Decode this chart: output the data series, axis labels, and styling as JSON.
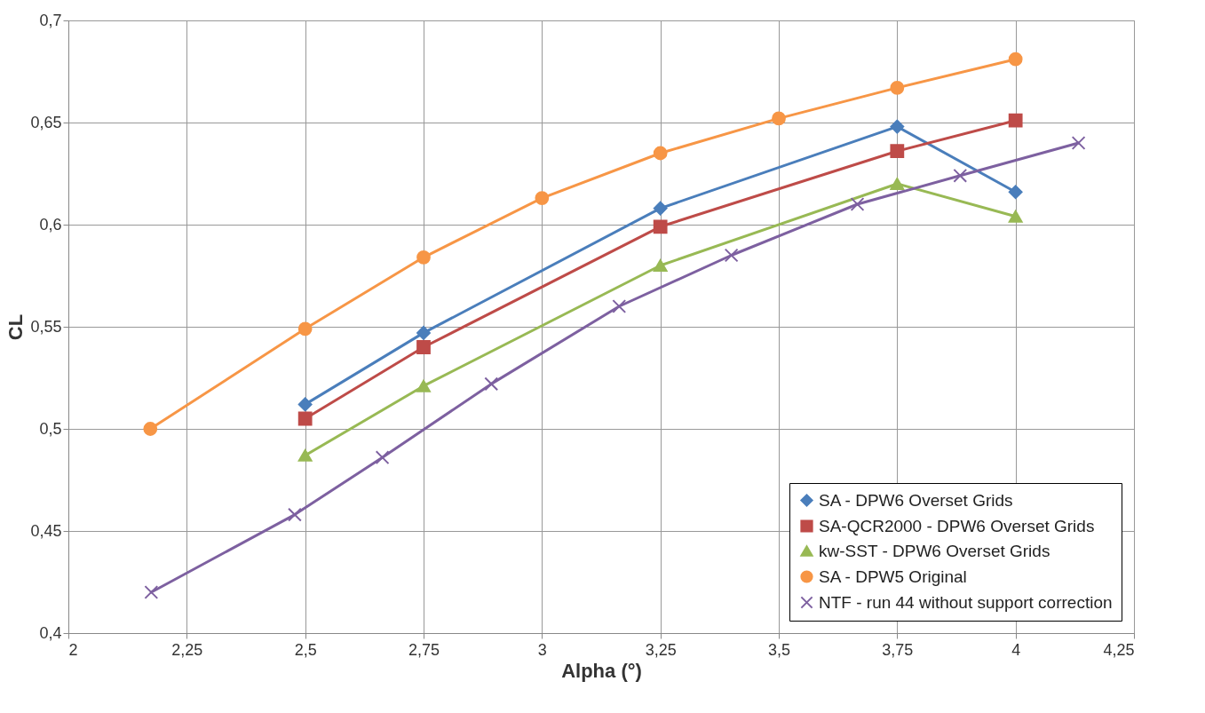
{
  "chart_data": {
    "type": "line",
    "xlabel": "Alpha (°)",
    "ylabel": "CL",
    "xlim": [
      2,
      4.25
    ],
    "xticks": [
      2,
      {
        "value": 2.25,
        "label": "2,25"
      },
      {
        "value": 2.5,
        "label": "2,5"
      },
      {
        "value": 2.75,
        "label": "2,75"
      },
      3,
      {
        "value": 3.25,
        "label": "3,25"
      },
      {
        "value": 3.5,
        "label": "3,5"
      },
      {
        "value": 3.75,
        "label": "3,75"
      },
      4,
      {
        "value": 4.25,
        "label": "4,25"
      }
    ],
    "ylim": [
      0.4,
      0.7
    ],
    "yticks": [
      {
        "value": 0.4,
        "label": "0,4"
      },
      {
        "value": 0.45,
        "label": "0,45"
      },
      {
        "value": 0.5,
        "label": "0,5"
      },
      {
        "value": 0.55,
        "label": "0,55"
      },
      {
        "value": 0.6,
        "label": "0,6"
      },
      {
        "value": 0.65,
        "label": "0,65"
      },
      {
        "value": 0.7,
        "label": "0,7"
      }
    ],
    "grid": true,
    "legend": "bottom right",
    "line_style": "solid",
    "series": [
      {
        "name": "SA - DPW6 Overset Grids",
        "color": "#4a7ebb",
        "marker": "diamond",
        "x": [
          2.5,
          2.75,
          3.25,
          3.75,
          4
        ],
        "values": [
          0.512,
          0.547,
          0.608,
          0.648,
          0.616
        ]
      },
      {
        "name": "SA-QCR2000 - DPW6 Overset Grids",
        "color": "#be4b48",
        "marker": "square",
        "x": [
          2.5,
          2.75,
          3.25,
          3.75,
          4
        ],
        "values": [
          0.505,
          0.54,
          0.599,
          0.636,
          0.651
        ]
      },
      {
        "name": "kw-SST - DPW6 Overset Grids",
        "color": "#98b954",
        "marker": "triangle",
        "x": [
          2.5,
          2.75,
          3.25,
          3.75,
          4
        ],
        "values": [
          0.487,
          0.521,
          0.58,
          0.62,
          0.604
        ]
      },
      {
        "name": "SA - DPW5 Original",
        "color": "#f79646",
        "marker": "circle",
        "x": [
          2.173,
          2.5,
          2.75,
          3,
          3.25,
          3.5,
          3.75,
          4
        ],
        "values": [
          0.5,
          0.549,
          0.584,
          0.613,
          0.635,
          0.652,
          0.667,
          0.681
        ]
      },
      {
        "name": "NTF - run 44 without support correction",
        "color": "#7d60a0",
        "marker": "cross",
        "x": [
          2.175,
          2.478,
          2.663,
          2.893,
          3.163,
          3.4,
          3.666,
          3.883,
          4.133
        ],
        "values": [
          0.42,
          0.458,
          0.486,
          0.522,
          0.56,
          0.585,
          0.61,
          0.624,
          0.64
        ]
      }
    ]
  }
}
